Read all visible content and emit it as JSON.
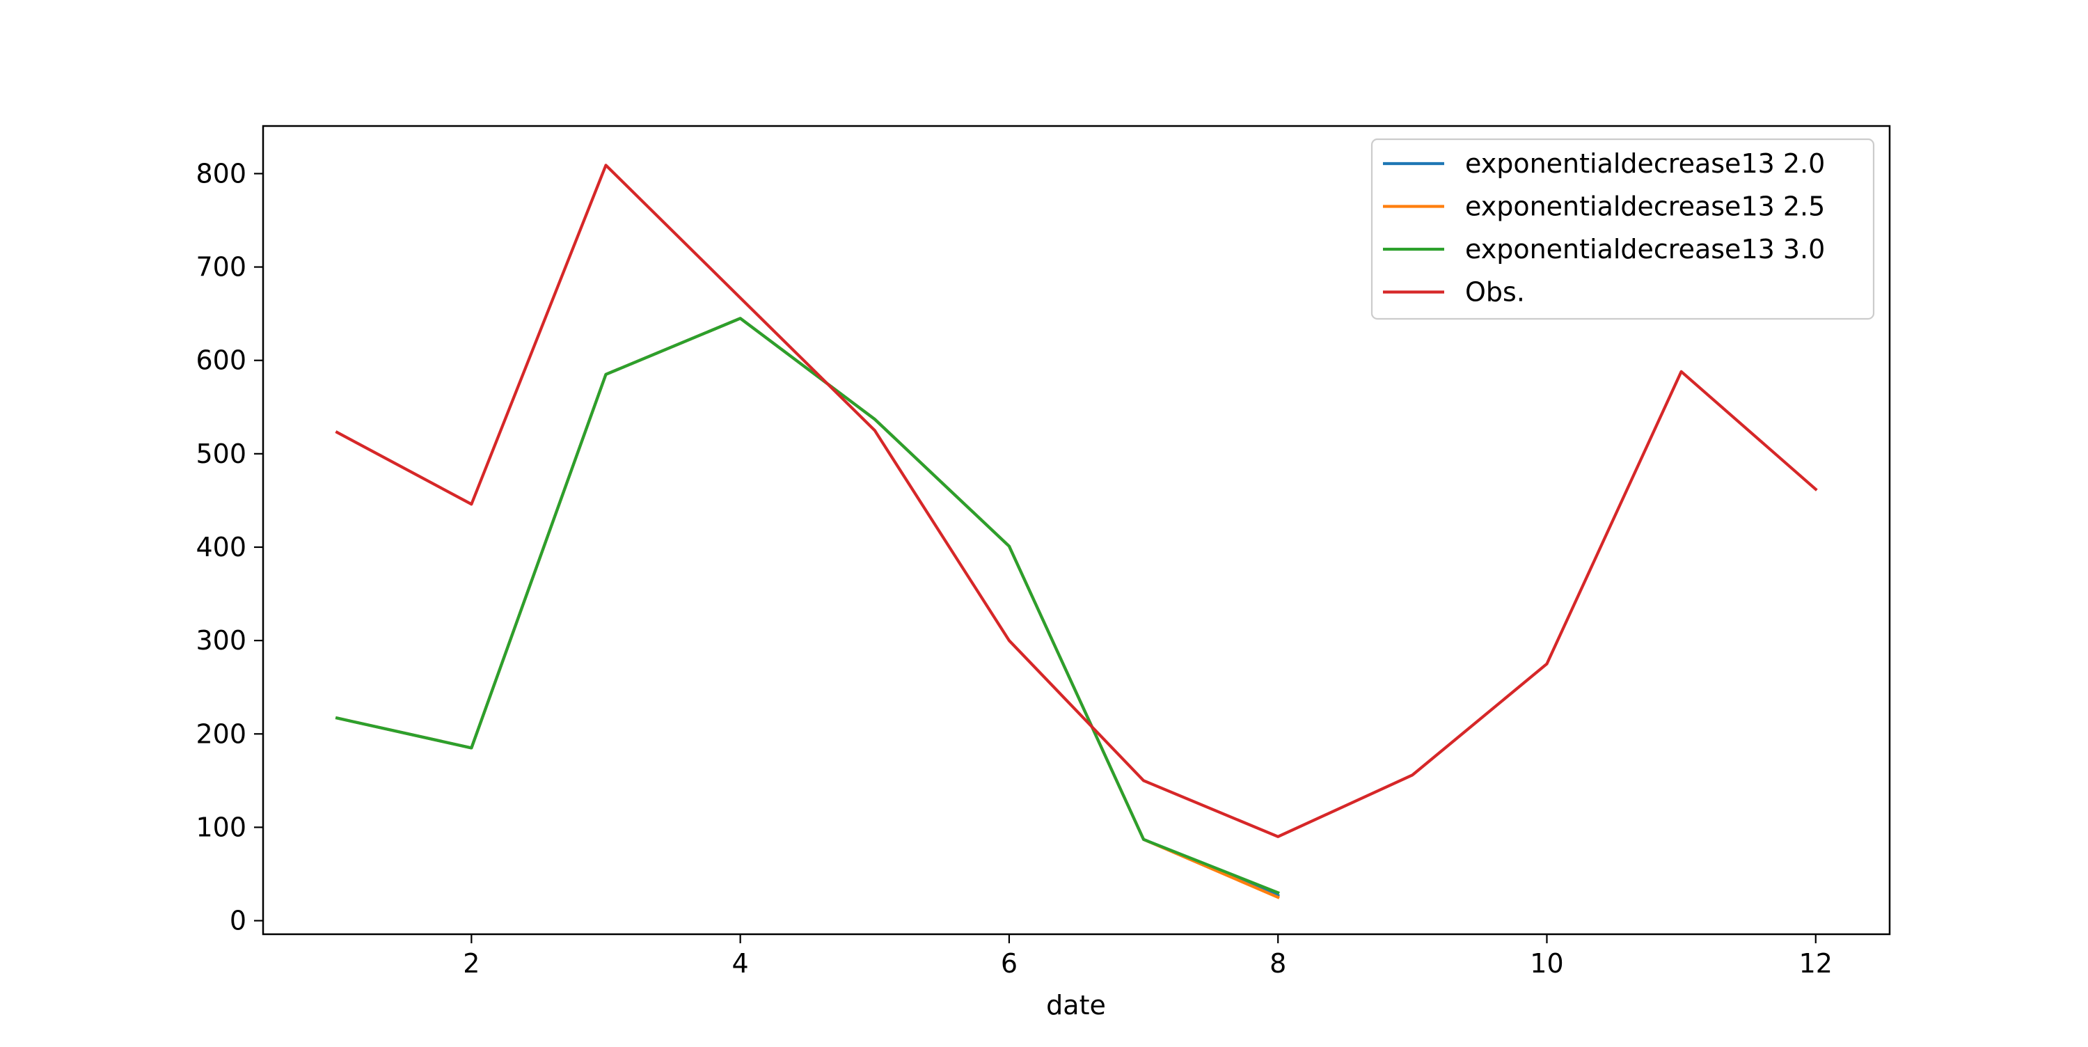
{
  "chart_data": {
    "type": "line",
    "title": "",
    "xlabel": "date",
    "ylabel": "",
    "xlim": [
      0.45,
      12.55
    ],
    "ylim": [
      -14.5,
      851
    ],
    "xticks": [
      2,
      4,
      6,
      8,
      10,
      12
    ],
    "yticks": [
      0,
      100,
      200,
      300,
      400,
      500,
      600,
      700,
      800
    ],
    "grid": false,
    "legend_position": "top-right",
    "series": [
      {
        "name": "exponentialdecrease13 2.0",
        "color": "#1f77b4",
        "x": [
          1,
          2,
          3,
          4,
          5,
          6,
          7,
          8
        ],
        "y": [
          217,
          185,
          585,
          645,
          537,
          401,
          87,
          27
        ]
      },
      {
        "name": "exponentialdecrease13 2.5",
        "color": "#ff7f0e",
        "x": [
          1,
          2,
          3,
          4,
          5,
          6,
          7,
          8
        ],
        "y": [
          217,
          185,
          585,
          645,
          537,
          401,
          87,
          25
        ]
      },
      {
        "name": "exponentialdecrease13 3.0",
        "color": "#2ca02c",
        "x": [
          1,
          2,
          3,
          4,
          5,
          6,
          7,
          8
        ],
        "y": [
          217,
          185,
          585,
          645,
          537,
          401,
          87,
          30
        ]
      },
      {
        "name": "Obs.",
        "color": "#d62728",
        "x": [
          1,
          2,
          3,
          4,
          5,
          6,
          7,
          8,
          9,
          10,
          11,
          12
        ],
        "y": [
          523,
          446,
          809,
          667,
          525,
          300,
          150,
          90,
          156,
          275,
          588,
          462
        ]
      }
    ]
  }
}
